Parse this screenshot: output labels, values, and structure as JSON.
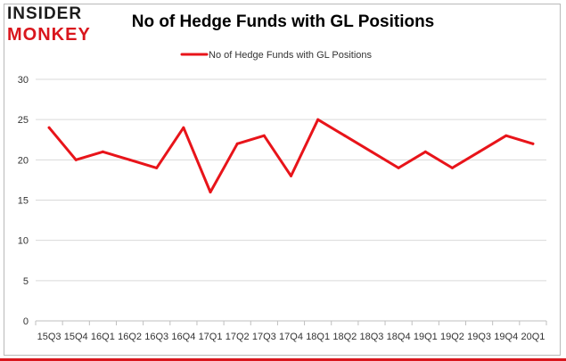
{
  "logo": {
    "top": "INSIDER",
    "bottom": "MONKEY"
  },
  "chart_data": {
    "type": "line",
    "title": "No of Hedge Funds with GL Positions",
    "xlabel": "",
    "ylabel": "",
    "categories": [
      "15Q3",
      "15Q4",
      "16Q1",
      "16Q2",
      "16Q3",
      "16Q4",
      "17Q1",
      "17Q2",
      "17Q3",
      "17Q4",
      "18Q1",
      "18Q2",
      "18Q3",
      "18Q4",
      "19Q1",
      "19Q2",
      "19Q3",
      "19Q4",
      "20Q1"
    ],
    "series": [
      {
        "name": "No of Hedge Funds with GL Positions",
        "color": "#e8141a",
        "values": [
          24,
          20,
          21,
          20,
          19,
          24,
          16,
          22,
          23,
          18,
          25,
          23,
          21,
          19,
          21,
          19,
          21,
          23,
          22
        ]
      }
    ],
    "ylim": [
      0,
      30
    ],
    "yticks": [
      0,
      5,
      10,
      15,
      20,
      25,
      30
    ],
    "grid": true,
    "legend": "top-center"
  }
}
